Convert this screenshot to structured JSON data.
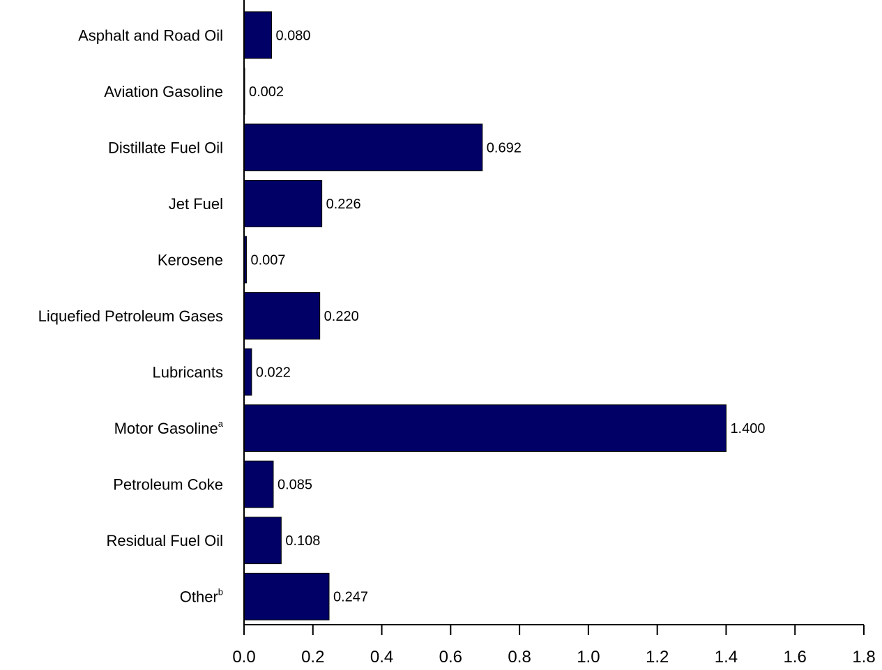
{
  "chart_data": {
    "type": "bar",
    "orientation": "horizontal",
    "title": "",
    "xlabel": "",
    "ylabel": "",
    "categories": [
      {
        "label": "Asphalt and Road Oil",
        "sup": ""
      },
      {
        "label": "Aviation Gasoline",
        "sup": ""
      },
      {
        "label": "Distillate Fuel Oil",
        "sup": ""
      },
      {
        "label": "Jet Fuel",
        "sup": ""
      },
      {
        "label": "Kerosene",
        "sup": ""
      },
      {
        "label": "Liquefied Petroleum Gases",
        "sup": ""
      },
      {
        "label": "Lubricants",
        "sup": ""
      },
      {
        "label": "Motor Gasoline",
        "sup": "a"
      },
      {
        "label": "Petroleum Coke",
        "sup": ""
      },
      {
        "label": "Residual Fuel Oil",
        "sup": ""
      },
      {
        "label": "Other",
        "sup": "b"
      }
    ],
    "values": [
      0.08,
      0.002,
      0.692,
      0.226,
      0.007,
      0.22,
      0.022,
      1.4,
      0.085,
      0.108,
      0.247
    ],
    "value_labels": [
      "0.080",
      "0.002",
      "0.692",
      "0.226",
      "0.007",
      "0.220",
      "0.022",
      "1.400",
      "0.085",
      "0.108",
      "0.247"
    ],
    "xlim": [
      0,
      1.8
    ],
    "xticks": [
      "0.0",
      "0.2",
      "0.4",
      "0.6",
      "0.8",
      "1.0",
      "1.2",
      "1.4",
      "1.6",
      "1.8"
    ],
    "grid": false,
    "legend": "none",
    "bar_color": "#000066"
  }
}
